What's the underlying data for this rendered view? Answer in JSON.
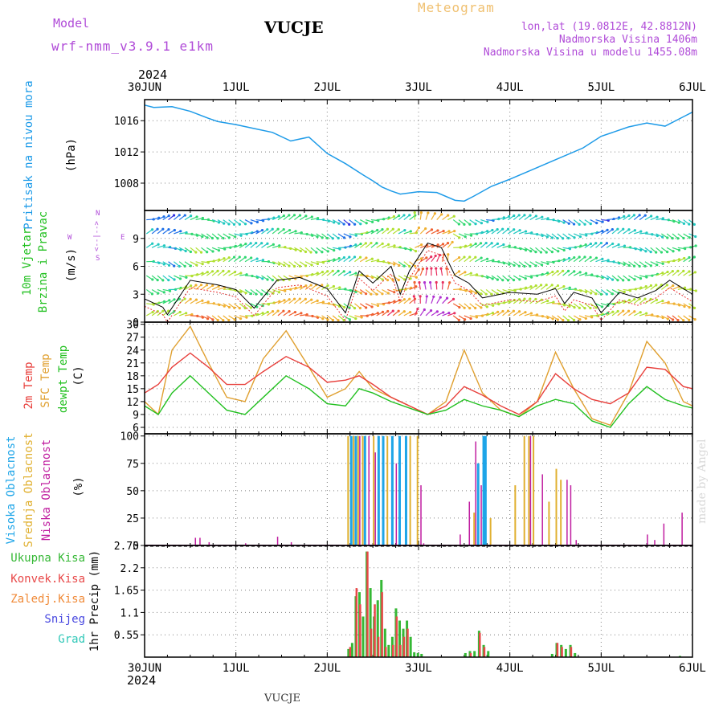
{
  "header": {
    "model_label": "Model",
    "model_name": "wrf-nmm_v3.9.1  e1km",
    "station": "VUCJE",
    "meteogram": "Meteogram",
    "lonlat": "lon,lat (19.0812E, 42.8812N)",
    "elevation": "Nadmorska Visina 1406m",
    "elevation_model": "Nadmorska Visina u modelu 1455.08m",
    "year_top": "2024",
    "year_bottom": "2024",
    "footer_station": "VUCJE",
    "watermark": "made by Angel"
  },
  "colors": {
    "pressure": "#1e9be8",
    "temp2m": "#e8403c",
    "sfc": "#e0a030",
    "dewpt": "#22c020",
    "cloud_high": "#1ea5e8",
    "cloud_mid": "#e0b030",
    "cloud_low": "#c01ea0",
    "purple": "#b04bd8",
    "precip_total": "#35b835",
    "precip_conv": "#e84848",
    "precip_frozen": "#f08a38",
    "snow": "#4848e0",
    "graupel": "#30c8b8"
  },
  "chart_data": {
    "type": "meteogram",
    "x_ticks": [
      "30JUN",
      "1JUL",
      "2JUL",
      "3JUL",
      "4JUL",
      "5JUL",
      "6JUL"
    ],
    "x_range_days": [
      0,
      6
    ],
    "panels": {
      "pressure": {
        "ylabel": "Pritisak na nivou mora",
        "unit": "(hPa)",
        "yticks": [
          1008,
          1012,
          1016
        ],
        "ylim": [
          1004.5,
          1018.7
        ],
        "x": [
          0,
          0.1,
          0.3,
          0.5,
          0.7,
          0.8,
          1,
          1.2,
          1.4,
          1.6,
          1.8,
          2.0,
          2.2,
          2.4,
          2.5,
          2.6,
          2.7,
          2.8,
          3.0,
          3.2,
          3.4,
          3.5,
          3.6,
          3.8,
          4.0,
          4.2,
          4.5,
          4.8,
          5.0,
          5.3,
          5.5,
          5.7,
          5.9,
          6.0
        ],
        "values": [
          1018.0,
          1017.7,
          1017.8,
          1017.2,
          1016.3,
          1015.9,
          1015.5,
          1015.0,
          1014.5,
          1013.4,
          1013.9,
          1011.8,
          1010.5,
          1009.0,
          1008.3,
          1007.5,
          1007.0,
          1006.6,
          1006.9,
          1006.8,
          1005.8,
          1005.7,
          1006.3,
          1007.6,
          1008.5,
          1009.5,
          1011.0,
          1012.5,
          1014.0,
          1015.2,
          1015.7,
          1015.3,
          1016.5,
          1017.1
        ]
      },
      "wind": {
        "ylabel1": "10m Vjetar",
        "ylabel2": "Brzina i Pravac",
        "unit": "(m/s)",
        "legend": {
          "north": "N",
          "west": "W",
          "east": "E",
          "south": "S",
          "arrows": "<--|-->"
        },
        "yticks": [
          0,
          3,
          6,
          9
        ],
        "ylim": [
          0,
          12
        ],
        "x": [
          0,
          0.2,
          0.25,
          0.5,
          0.8,
          1.0,
          1.2,
          1.45,
          1.7,
          2.0,
          2.2,
          2.35,
          2.5,
          2.7,
          2.8,
          2.9,
          3.0,
          3.1,
          3.25,
          3.4,
          3.55,
          3.7,
          4.0,
          4.3,
          4.5,
          4.6,
          4.7,
          4.9,
          5.0,
          5.2,
          5.4,
          5.6,
          5.75,
          5.9,
          6.0
        ],
        "speed": [
          2.5,
          1.6,
          0.8,
          4.5,
          4.0,
          3.5,
          1.5,
          4.5,
          4.8,
          3.6,
          1.0,
          5.5,
          4.2,
          6.0,
          3.0,
          5.5,
          7.0,
          8.5,
          8.0,
          5.0,
          4.2,
          2.6,
          3.2,
          3.0,
          3.6,
          2.0,
          3.2,
          2.6,
          1.0,
          3.2,
          2.6,
          3.4,
          4.5,
          3.6,
          3.0
        ]
      },
      "temperature": {
        "ylabel_2m": "2m Temp",
        "ylabel_sfc": "SFC Temp",
        "ylabel_dewpt": "dewpt Temp",
        "unit": "(C)",
        "yticks": [
          6,
          9,
          12,
          15,
          18,
          21,
          24,
          27,
          30
        ],
        "ylim": [
          4.5,
          30.5
        ],
        "x": [
          0,
          0.15,
          0.3,
          0.5,
          0.7,
          0.9,
          1.1,
          1.3,
          1.55,
          1.8,
          2.0,
          2.2,
          2.35,
          2.5,
          2.7,
          2.9,
          3.1,
          3.3,
          3.5,
          3.7,
          3.9,
          4.1,
          4.3,
          4.5,
          4.7,
          4.9,
          5.1,
          5.3,
          5.5,
          5.7,
          5.9,
          6.0
        ],
        "t2m": [
          14.0,
          16.0,
          20.0,
          23.3,
          20.0,
          16.0,
          16.0,
          19.0,
          22.5,
          20.0,
          16.5,
          17.0,
          18.0,
          16.0,
          13.0,
          11.0,
          9.0,
          11.0,
          15.5,
          13.5,
          11.0,
          9.0,
          12.0,
          18.5,
          15.0,
          12.5,
          11.5,
          14.0,
          20.0,
          19.5,
          15.5,
          15.0
        ],
        "sfc": [
          12.0,
          9.0,
          24.0,
          29.5,
          21.0,
          13.0,
          12.0,
          22.0,
          28.5,
          20.0,
          13.0,
          15.0,
          19.0,
          15.0,
          13.0,
          11.0,
          9.0,
          12.0,
          24.0,
          14.0,
          10.0,
          8.5,
          12.0,
          23.5,
          15.0,
          8.0,
          6.5,
          14.0,
          26.0,
          21.0,
          12.0,
          11.0
        ],
        "dewpt": [
          11.0,
          9.0,
          14.0,
          18.0,
          14.0,
          10.0,
          9.0,
          13.0,
          18.0,
          15.0,
          11.5,
          11.0,
          15.0,
          14.0,
          12.0,
          10.5,
          9.0,
          10.0,
          12.5,
          11.0,
          10.0,
          8.5,
          11.0,
          12.5,
          11.5,
          7.5,
          6.0,
          11.5,
          15.5,
          12.5,
          11.0,
          10.5
        ]
      },
      "clouds": {
        "ylabel_high": "Visoka Oblacnost",
        "ylabel_mid": "Srednja Oblacnost",
        "ylabel_low": "Niska Oblacnost",
        "unit": "(%)",
        "yticks": [
          0,
          25,
          50,
          75,
          100
        ],
        "ylim": [
          0,
          102
        ],
        "high": [
          [
            2.25,
            100
          ],
          [
            2.3,
            100
          ],
          [
            2.4,
            100
          ],
          [
            2.55,
            100
          ],
          [
            2.6,
            100
          ],
          [
            2.7,
            100
          ],
          [
            2.78,
            100
          ],
          [
            2.85,
            100
          ],
          [
            3.7,
            100
          ],
          [
            3.72,
            100
          ],
          [
            3.64,
            75
          ]
        ],
        "mid": [
          [
            2.22,
            100
          ],
          [
            2.28,
            100
          ],
          [
            2.33,
            100
          ],
          [
            2.38,
            100
          ],
          [
            2.5,
            100
          ],
          [
            2.65,
            100
          ],
          [
            2.9,
            100
          ],
          [
            2.98,
            100
          ],
          [
            3.6,
            30
          ],
          [
            3.78,
            25
          ],
          [
            4.05,
            55
          ],
          [
            4.15,
            100
          ],
          [
            4.2,
            100
          ],
          [
            4.25,
            100
          ],
          [
            4.5,
            70
          ],
          [
            4.42,
            40
          ],
          [
            4.55,
            60
          ]
        ],
        "low": [
          [
            0.55,
            7
          ],
          [
            0.6,
            7
          ],
          [
            0.7,
            3
          ],
          [
            1.1,
            2
          ],
          [
            1.45,
            8
          ],
          [
            1.6,
            3
          ],
          [
            2.35,
            100
          ],
          [
            2.45,
            100
          ],
          [
            2.52,
            85
          ],
          [
            2.75,
            75
          ],
          [
            3.02,
            55
          ],
          [
            3.05,
            2
          ],
          [
            3.45,
            10
          ],
          [
            3.55,
            40
          ],
          [
            3.62,
            95
          ],
          [
            3.68,
            55
          ],
          [
            4.22,
            100
          ],
          [
            4.35,
            65
          ],
          [
            4.62,
            60
          ],
          [
            4.66,
            55
          ],
          [
            4.72,
            5
          ],
          [
            5.5,
            10
          ],
          [
            5.58,
            5
          ],
          [
            5.68,
            20
          ],
          [
            5.88,
            30
          ]
        ]
      },
      "precip": {
        "ylabel": "1hr Precip (mm)",
        "legend_total": "Ukupna Kisa",
        "legend_conv": "Konvek.Kisa",
        "legend_frozen": "Zaledj.Kisa",
        "legend_snow": "Snijeg",
        "legend_graupel": "Grad",
        "yticks": [
          0.55,
          1.1,
          1.65,
          2.2,
          2.75
        ],
        "ylim": [
          0,
          2.75
        ],
        "total": [
          [
            2.22,
            0.2
          ],
          [
            2.26,
            0.35
          ],
          [
            2.3,
            1.5
          ],
          [
            2.34,
            1.6
          ],
          [
            2.38,
            1.0
          ],
          [
            2.42,
            2.6
          ],
          [
            2.46,
            1.7
          ],
          [
            2.5,
            1.0
          ],
          [
            2.54,
            1.4
          ],
          [
            2.58,
            1.9
          ],
          [
            2.62,
            0.7
          ],
          [
            2.66,
            0.3
          ],
          [
            2.7,
            0.5
          ],
          [
            2.74,
            1.2
          ],
          [
            2.78,
            0.9
          ],
          [
            2.82,
            0.7
          ],
          [
            2.86,
            0.9
          ],
          [
            2.9,
            0.5
          ],
          [
            2.94,
            0.12
          ],
          [
            2.98,
            0.1
          ],
          [
            3.02,
            0.08
          ],
          [
            3.5,
            0.1
          ],
          [
            3.55,
            0.15
          ],
          [
            3.6,
            0.15
          ],
          [
            3.65,
            0.65
          ],
          [
            3.7,
            0.3
          ],
          [
            3.75,
            0.15
          ],
          [
            4.45,
            0.08
          ],
          [
            4.5,
            0.35
          ],
          [
            4.55,
            0.3
          ],
          [
            4.6,
            0.2
          ],
          [
            4.65,
            0.3
          ],
          [
            4.7,
            0.1
          ],
          [
            5.85,
            0.03
          ]
        ],
        "convective": [
          [
            2.24,
            0.25
          ],
          [
            2.31,
            1.7
          ],
          [
            2.35,
            1.3
          ],
          [
            2.43,
            2.6
          ],
          [
            2.47,
            0.7
          ],
          [
            2.51,
            1.3
          ],
          [
            2.55,
            0.5
          ],
          [
            2.59,
            1.6
          ],
          [
            2.63,
            0.25
          ],
          [
            2.71,
            0.3
          ],
          [
            2.75,
            1.0
          ],
          [
            2.79,
            0.3
          ],
          [
            2.83,
            0.5
          ],
          [
            2.87,
            0.7
          ],
          [
            3.56,
            0.1
          ],
          [
            3.66,
            0.6
          ],
          [
            3.71,
            0.25
          ],
          [
            4.51,
            0.35
          ],
          [
            4.56,
            0.25
          ],
          [
            4.66,
            0.25
          ]
        ]
      }
    }
  }
}
